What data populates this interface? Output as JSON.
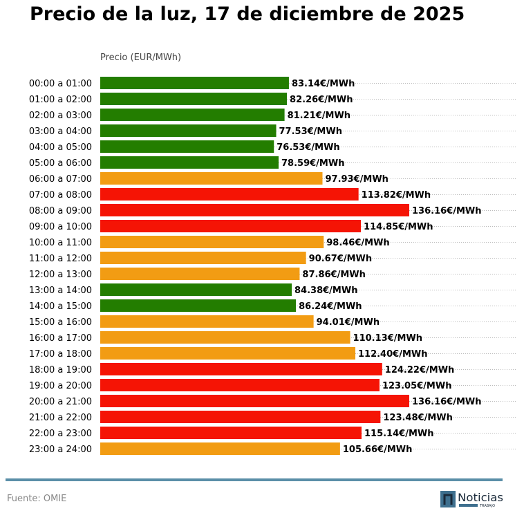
{
  "title": "Precio de la luz, 17 de diciembre de 2025",
  "source": "Fuente: OMIE",
  "logo": {
    "text": "Noticias",
    "subtext": "TRABAJO",
    "color": "#3e6f8e"
  },
  "colors": {
    "low": "#237d00",
    "mid": "#f29c13",
    "high": "#f51405",
    "rule": "#5b8fa8"
  },
  "chart_data": {
    "type": "bar",
    "orientation": "horizontal",
    "title": "Precio de la luz, 17 de diciembre de 2025",
    "xlabel": "Precio (EUR/MWh)",
    "unit_suffix": "€/MWh",
    "xlim": [
      0,
      183
    ],
    "grid": "dotted horizontal lines per row",
    "categories": [
      "00:00 a 01:00",
      "01:00 a 02:00",
      "02:00 a 03:00",
      "03:00 a 04:00",
      "04:00 a 05:00",
      "05:00 a 06:00",
      "06:00 a 07:00",
      "07:00 a 08:00",
      "08:00 a 09:00",
      "09:00 a 10:00",
      "10:00 a 11:00",
      "11:00 a 12:00",
      "12:00 a 13:00",
      "13:00 a 14:00",
      "14:00 a 15:00",
      "15:00 a 16:00",
      "16:00 a 17:00",
      "17:00 a 18:00",
      "18:00 a 19:00",
      "19:00 a 20:00",
      "20:00 a 21:00",
      "21:00 a 22:00",
      "22:00 a 23:00",
      "23:00 a 24:00"
    ],
    "values": [
      83.14,
      82.26,
      81.21,
      77.53,
      76.53,
      78.59,
      97.93,
      113.82,
      136.16,
      114.85,
      98.46,
      90.67,
      87.86,
      84.38,
      86.24,
      94.01,
      110.13,
      112.4,
      124.22,
      123.05,
      136.16,
      123.48,
      115.14,
      105.66
    ],
    "levels": [
      "low",
      "low",
      "low",
      "low",
      "low",
      "low",
      "mid",
      "high",
      "high",
      "high",
      "mid",
      "mid",
      "mid",
      "low",
      "low",
      "mid",
      "mid",
      "mid",
      "high",
      "high",
      "high",
      "high",
      "high",
      "mid"
    ]
  }
}
